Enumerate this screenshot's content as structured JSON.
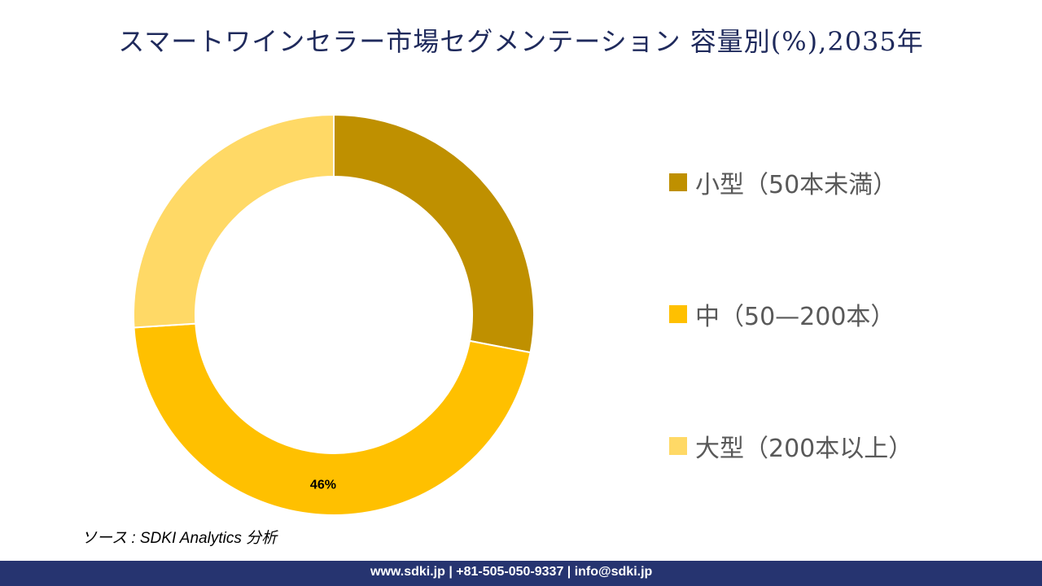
{
  "title": "スマートワインセラー市場セグメンテーション 容量別(%),2035年",
  "chart_data": {
    "type": "pie",
    "donut": true,
    "title": "スマートワインセラー市場セグメンテーション 容量別(%),2035年",
    "categories": [
      "小型（50本未満）",
      "中（50—200本）",
      "大型（200本以上）"
    ],
    "values": [
      28,
      46,
      26
    ],
    "data_labels": [
      "",
      "46%",
      ""
    ],
    "colors": [
      "#BF9000",
      "#FFC000",
      "#FFD966"
    ],
    "legend_position": "right"
  },
  "source": "ソース : SDKI Analytics 分析",
  "footer": "www.sdki.jp | +81-505-050-9337 | info@sdki.jp"
}
